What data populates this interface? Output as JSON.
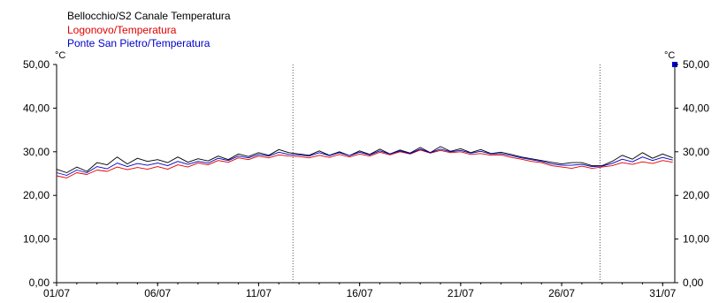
{
  "legend": [
    {
      "label": "Bellocchio/S2 Canale Temperatura",
      "color": "#000000"
    },
    {
      "label": "Logonovo/Temperatura",
      "color": "#e00000"
    },
    {
      "label": "Ponte San Pietro/Temperatura",
      "color": "#0000c8"
    }
  ],
  "chart_data": {
    "type": "line",
    "title": "",
    "y_unit_left": "°C",
    "y_unit_right": "°C",
    "ylim": [
      0,
      50
    ],
    "y_ticks": [
      "0,00",
      "10,00",
      "20,00",
      "30,00",
      "40,00",
      "50,00"
    ],
    "x_range_days": [
      1,
      31.6
    ],
    "x_ticks": [
      {
        "day": 1,
        "label": "01/07"
      },
      {
        "day": 6,
        "label": "06/07"
      },
      {
        "day": 11,
        "label": "11/07"
      },
      {
        "day": 16,
        "label": "16/07"
      },
      {
        "day": 21,
        "label": "21/07"
      },
      {
        "day": 26,
        "label": "26/07"
      },
      {
        "day": 31,
        "label": "31/07"
      }
    ],
    "markers_day": [
      12.7,
      27.9
    ],
    "grid": false,
    "legend_position": "top-left",
    "series": [
      {
        "name": "Bellocchio/S2 Canale Temperatura",
        "color": "#000000",
        "x": [
          1,
          1.5,
          2,
          2.5,
          3,
          3.5,
          4,
          4.5,
          5,
          5.5,
          6,
          6.5,
          7,
          7.5,
          8,
          8.5,
          9,
          9.5,
          10,
          10.5,
          11,
          11.5,
          12,
          12.5,
          13,
          13.5,
          14,
          14.5,
          15,
          15.5,
          16,
          16.5,
          17,
          17.5,
          18,
          18.5,
          19,
          19.5,
          20,
          20.5,
          21,
          21.5,
          22,
          22.5,
          23,
          23.5,
          24,
          24.5,
          25,
          25.5,
          26,
          26.5,
          27,
          27.5,
          28,
          28.5,
          29,
          29.5,
          30,
          30.5,
          31,
          31.5
        ],
        "values": [
          26,
          25.2,
          26.5,
          25.5,
          27.5,
          27,
          28.8,
          27.2,
          28.5,
          27.8,
          28.2,
          27.5,
          28.8,
          27.6,
          28.4,
          27.9,
          29,
          28.2,
          29.5,
          28.9,
          29.8,
          29.2,
          30.5,
          29.8,
          29.5,
          29.2,
          30.2,
          29.2,
          30,
          29.1,
          30.2,
          29.4,
          30.6,
          29.5,
          30.4,
          29.7,
          31,
          29.8,
          31.2,
          30.1,
          30.7,
          29.8,
          30.5,
          29.6,
          29.9,
          29.4,
          28.8,
          28.4,
          28,
          27.6,
          27.2,
          27.5,
          27.5,
          26.8,
          26.8,
          27.8,
          29.2,
          28.3,
          29.8,
          28.5,
          29.5,
          28.6
        ]
      },
      {
        "name": "Logonovo/Temperatura",
        "color": "#e00000",
        "x": [
          1,
          1.5,
          2,
          2.5,
          3,
          3.5,
          4,
          4.5,
          5,
          5.5,
          6,
          6.5,
          7,
          7.5,
          8,
          8.5,
          9,
          9.5,
          10,
          10.5,
          11,
          11.5,
          12,
          12.5,
          13,
          13.5,
          14,
          14.5,
          15,
          15.5,
          16,
          16.5,
          17,
          17.5,
          18,
          18.5,
          19,
          19.5,
          20,
          20.5,
          21,
          21.5,
          22,
          22.5,
          23,
          23.5,
          24,
          24.5,
          25,
          25.5,
          26,
          26.5,
          27,
          27.5,
          28,
          28.5,
          29,
          29.5,
          30,
          30.5,
          31,
          31.5
        ],
        "values": [
          24.5,
          24,
          25.2,
          24.8,
          25.8,
          25.5,
          26.5,
          25.9,
          26.4,
          26,
          26.6,
          26,
          27,
          26.5,
          27.4,
          27,
          28,
          27.6,
          28.6,
          28.2,
          29,
          28.6,
          29.3,
          29,
          28.9,
          28.6,
          29.2,
          28.7,
          29.4,
          28.8,
          29.5,
          29,
          29.9,
          29.3,
          30,
          29.5,
          30.4,
          29.7,
          30.3,
          29.8,
          30,
          29.4,
          29.6,
          29.2,
          29.3,
          28.7,
          28.3,
          27.8,
          27.5,
          26.8,
          26.5,
          26.2,
          26.7,
          26.2,
          26.5,
          26.8,
          27.5,
          27.1,
          27.7,
          27.3,
          28,
          27.6
        ]
      },
      {
        "name": "Ponte San Pietro/Temperatura",
        "color": "#0000c8",
        "x": [
          1,
          1.5,
          2,
          2.5,
          3,
          3.5,
          4,
          4.5,
          5,
          5.5,
          6,
          6.5,
          7,
          7.5,
          8,
          8.5,
          9,
          9.5,
          10,
          10.5,
          11,
          11.5,
          12,
          12.5,
          13,
          13.5,
          14,
          14.5,
          15,
          15.5,
          16,
          16.5,
          17,
          17.5,
          18,
          18.5,
          19,
          19.5,
          20,
          20.5,
          21,
          21.5,
          22,
          22.5,
          23,
          23.5,
          24,
          24.5,
          25,
          25.5,
          26,
          26.5,
          27,
          27.5,
          28,
          28.5,
          29,
          29.5,
          30,
          30.5,
          31,
          31.5
        ],
        "values": [
          25.2,
          24.6,
          25.8,
          25.2,
          26.6,
          26.1,
          27.4,
          26.6,
          27.3,
          26.9,
          27.4,
          26.8,
          27.8,
          27.1,
          27.8,
          27.4,
          28.5,
          28,
          29,
          28.6,
          29.4,
          29,
          29.9,
          29.4,
          29.3,
          29,
          29.8,
          29.1,
          29.8,
          29.1,
          29.9,
          29.3,
          30.2,
          29.5,
          30.2,
          29.6,
          30.6,
          29.8,
          30.6,
          30,
          30.3,
          29.7,
          30.1,
          29.5,
          29.6,
          29.1,
          28.6,
          28.2,
          27.8,
          27.2,
          26.9,
          26.9,
          27.1,
          26.6,
          26.7,
          27.3,
          28.3,
          27.7,
          28.8,
          28,
          28.7,
          28.1
        ]
      }
    ]
  }
}
